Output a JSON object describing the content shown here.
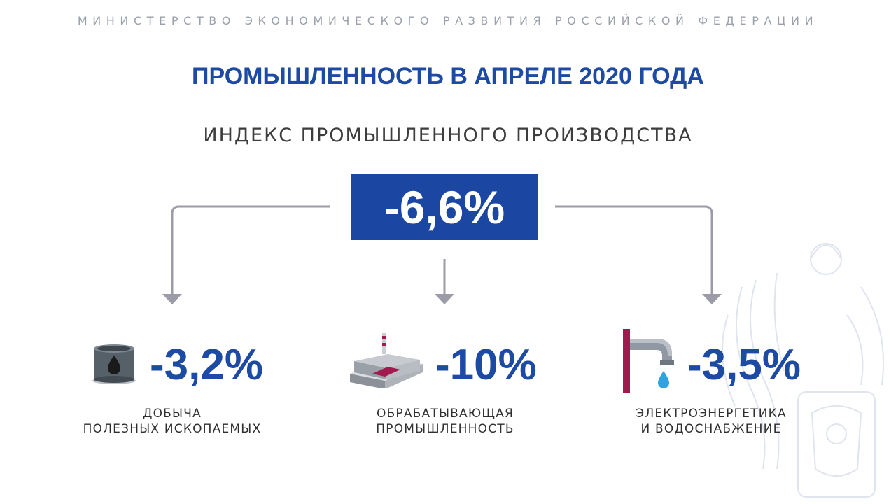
{
  "header": {
    "ministry": "МИНИСТЕРСТВО ЭКОНОМИЧЕСКОГО РАЗВИТИЯ РОССИЙСКОЙ ФЕДЕРАЦИИ",
    "title": "ПРОМЫШЛЕННОСТЬ В АПРЕЛЕ 2020 ГОДА",
    "subtitle": "ИНДЕКС ПРОМЫШЛЕННОГО ПРОИЗВОДСТВА"
  },
  "main": {
    "value": "-6,6%"
  },
  "sectors": [
    {
      "value": "-3,2%",
      "label_line1": "ДОБЫЧА",
      "label_line2": "ПОЛЕЗНЫХ ИСКОПАЕМЫХ",
      "icon": "oil-barrel-icon"
    },
    {
      "value": "-10%",
      "label_line1": "ОБРАБАТЫВАЮЩАЯ",
      "label_line2": "ПРОМЫШЛЕННОСТЬ",
      "icon": "factory-icon"
    },
    {
      "value": "-3,5%",
      "label_line1": "ЭЛЕКТРОЭНЕРГЕТИКА",
      "label_line2": "И ВОДОСНАБЖЕНИЕ",
      "icon": "water-tap-icon"
    }
  ],
  "colors": {
    "accent": "#1b47a3",
    "line": "#9c9ba8",
    "magenta": "#a0194f",
    "text": "#2f2f2f"
  }
}
